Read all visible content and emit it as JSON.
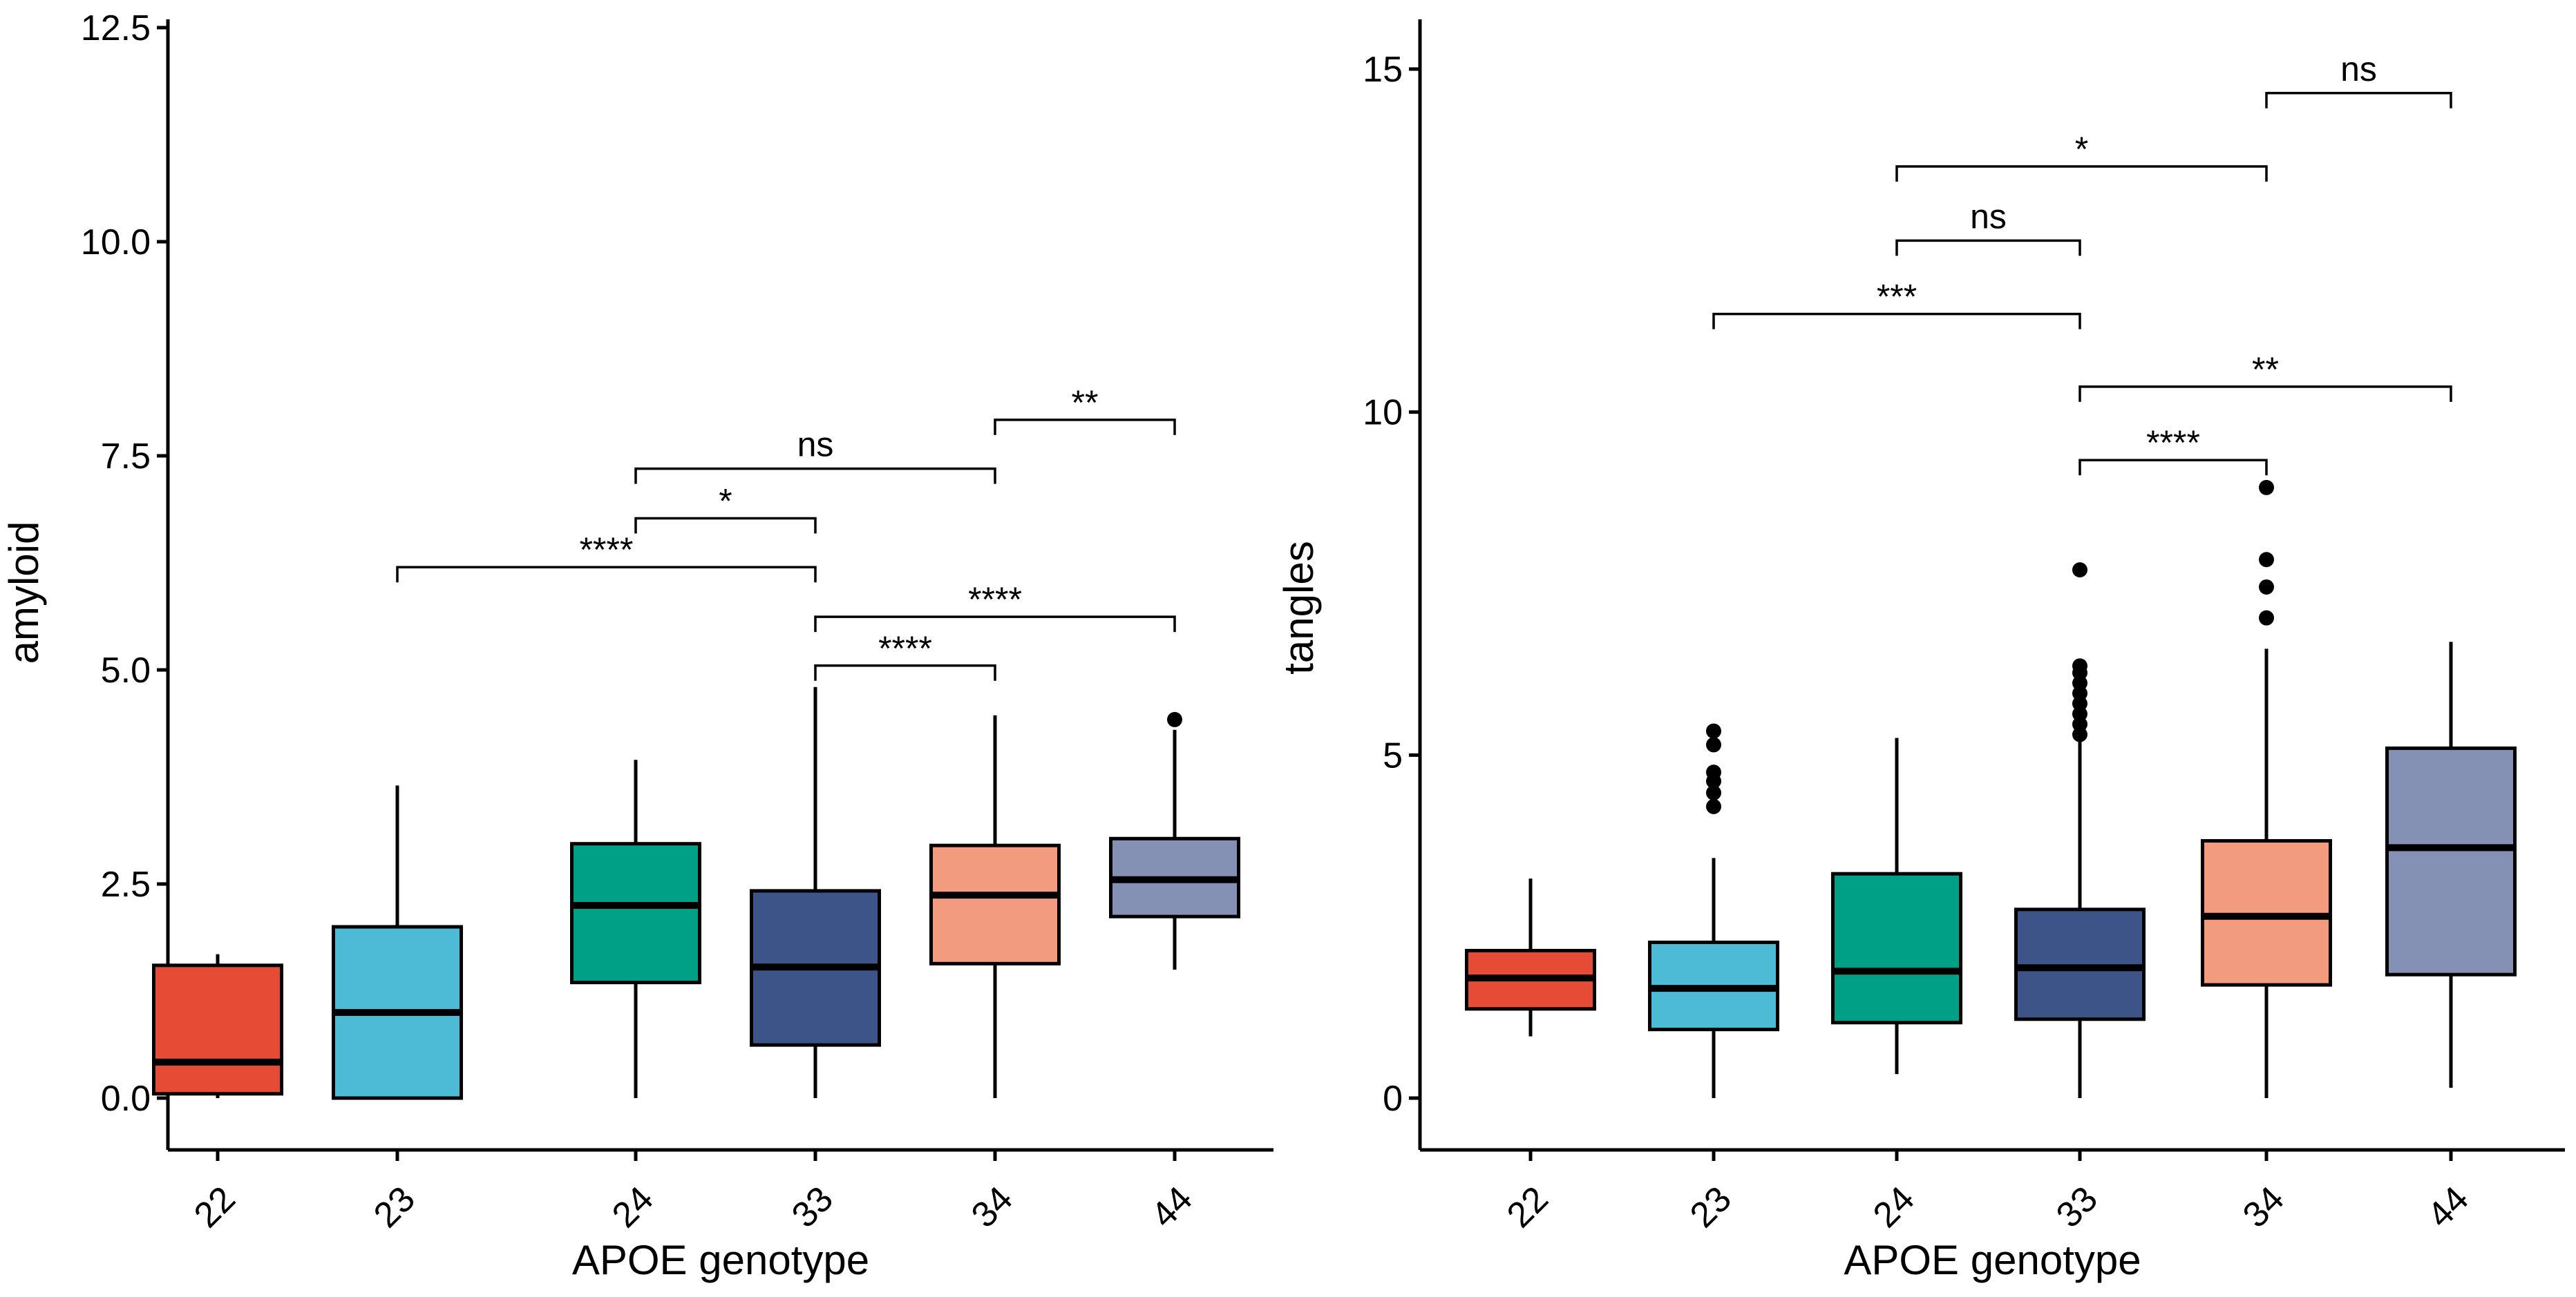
{
  "chart_data": [
    {
      "type": "boxplot",
      "xlabel": "APOE genotype",
      "ylabel": "amyloid",
      "ylim": [
        0,
        12.5
      ],
      "yticks": [
        0.0,
        2.5,
        5.0,
        7.5,
        10.0,
        12.5
      ],
      "ytick_labels": [
        "0.0",
        "2.5",
        "5.0",
        "7.5",
        "10.0",
        "12.5"
      ],
      "categories": [
        "22",
        "23",
        "24",
        "33",
        "34",
        "44"
      ],
      "colors": [
        "#E64B35",
        "#4DBBD5",
        "#00A087",
        "#3C5488",
        "#F39B7F",
        "#8491B4"
      ],
      "boxes": [
        {
          "low": 0.0,
          "q1": 0.05,
          "median": 0.42,
          "q3": 1.55,
          "high": 1.68,
          "outliers": []
        },
        {
          "low": 0.0,
          "q1": 0.0,
          "median": 1.0,
          "q3": 2.0,
          "high": 3.65,
          "outliers": []
        },
        {
          "low": 0.0,
          "q1": 1.35,
          "median": 2.25,
          "q3": 2.97,
          "high": 3.95,
          "outliers": []
        },
        {
          "low": 0.0,
          "q1": 0.62,
          "median": 1.53,
          "q3": 2.42,
          "high": 4.8,
          "outliers": []
        },
        {
          "low": 0.0,
          "q1": 1.57,
          "median": 2.37,
          "q3": 2.95,
          "high": 4.47,
          "outliers": []
        },
        {
          "low": 1.5,
          "q1": 2.12,
          "median": 2.55,
          "q3": 3.03,
          "high": 4.3,
          "outliers": [
            4.42
          ]
        }
      ],
      "comparisons": [
        {
          "from": "34",
          "to": "44",
          "y": 7.92,
          "label": "**"
        },
        {
          "from": "24",
          "to": "34",
          "y": 7.35,
          "label": "ns"
        },
        {
          "from": "24",
          "to": "33",
          "y": 6.77,
          "label": "*"
        },
        {
          "from": "23",
          "to": "33",
          "y": 6.2,
          "label": "****"
        },
        {
          "from": "33",
          "to": "44",
          "y": 5.62,
          "label": "****"
        },
        {
          "from": "33",
          "to": "34",
          "y": 5.05,
          "label": "****"
        }
      ]
    },
    {
      "type": "boxplot",
      "xlabel": "APOE genotype",
      "ylabel": "tangles",
      "ylim": [
        0,
        15
      ],
      "yticks": [
        0,
        5,
        10,
        15
      ],
      "ytick_labels": [
        "0",
        "5",
        "10",
        "15"
      ],
      "categories": [
        "22",
        "23",
        "24",
        "33",
        "34",
        "44"
      ],
      "colors": [
        "#E64B35",
        "#4DBBD5",
        "#00A087",
        "#3C5488",
        "#F39B7F",
        "#8491B4"
      ],
      "boxes": [
        {
          "low": 0.9,
          "q1": 1.3,
          "median": 1.75,
          "q3": 2.15,
          "high": 3.2,
          "outliers": []
        },
        {
          "low": 0.0,
          "q1": 1.0,
          "median": 1.6,
          "q3": 2.27,
          "high": 3.5,
          "outliers": [
            4.25,
            4.45,
            4.62,
            4.75,
            5.15,
            5.35
          ]
        },
        {
          "low": 0.35,
          "q1": 1.1,
          "median": 1.85,
          "q3": 3.27,
          "high": 5.25,
          "outliers": []
        },
        {
          "low": 0.0,
          "q1": 1.15,
          "median": 1.9,
          "q3": 2.75,
          "high": 5.2,
          "outliers": [
            5.3,
            5.45,
            5.6,
            5.75,
            5.9,
            6.05,
            6.2,
            6.3,
            7.7
          ]
        },
        {
          "low": 0.0,
          "q1": 1.65,
          "median": 2.65,
          "q3": 3.75,
          "high": 6.55,
          "outliers": [
            7.0,
            7.45,
            7.85,
            8.9
          ]
        },
        {
          "low": 0.15,
          "q1": 1.8,
          "median": 3.65,
          "q3": 5.1,
          "high": 6.65,
          "outliers": []
        }
      ],
      "comparisons": [
        {
          "from": "34",
          "to": "44",
          "y": 14.65,
          "label": "ns"
        },
        {
          "from": "24",
          "to": "34",
          "y": 13.58,
          "label": "*"
        },
        {
          "from": "24",
          "to": "33",
          "y": 12.5,
          "label": "ns"
        },
        {
          "from": "23",
          "to": "33",
          "y": 11.43,
          "label": "***"
        },
        {
          "from": "33",
          "to": "44",
          "y": 10.37,
          "label": "**"
        },
        {
          "from": "33",
          "to": "34",
          "y": 9.3,
          "label": "****"
        }
      ]
    }
  ]
}
